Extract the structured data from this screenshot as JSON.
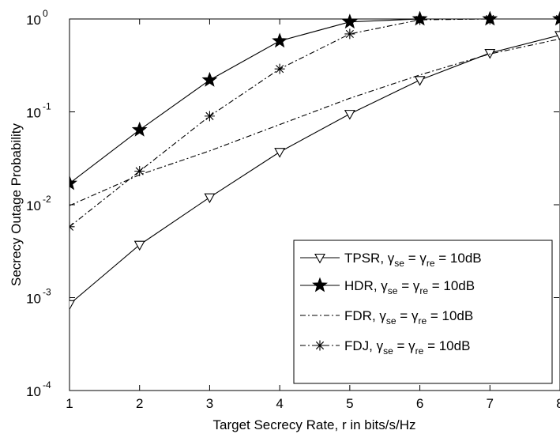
{
  "chart_data": {
    "type": "line",
    "title": "",
    "xlabel": "Target Secrecy Rate, r  in bits/s/Hz",
    "ylabel": "Secrecy Outage Probability",
    "x_ticks": [
      1,
      2,
      3,
      4,
      5,
      6,
      7,
      8
    ],
    "y_scale": "log",
    "y_tick_exponents": [
      -4,
      -3,
      -2,
      -1,
      0
    ],
    "y_tick_base": "10",
    "xlim": [
      1,
      8
    ],
    "ylim": [
      0.0001,
      1
    ],
    "grid": false,
    "legend_position": "bottom-right",
    "series": [
      {
        "name": "TPSR, γse =  γre = 10dB",
        "legend": {
          "prefix": "TPSR, ",
          "gamma": "γ",
          "sub1": "se",
          "mid": " =  ",
          "sub2": "re",
          "suffix": " = 10dB"
        },
        "marker": "triangle-down",
        "linestyle": "solid",
        "x": [
          1,
          2,
          3,
          4,
          5,
          6,
          7,
          8
        ],
        "y": [
          0.00085,
          0.0037,
          0.012,
          0.037,
          0.095,
          0.22,
          0.43,
          0.67
        ]
      },
      {
        "name": "HDR, γse =  γre = 10dB",
        "legend": {
          "prefix": "HDR, ",
          "gamma": "γ",
          "sub1": "se",
          "mid": " =  ",
          "sub2": "re",
          "suffix": " = 10dB"
        },
        "marker": "star-filled",
        "linestyle": "solid",
        "x": [
          1,
          2,
          3,
          4,
          5,
          6,
          7,
          8
        ],
        "y": [
          0.017,
          0.064,
          0.22,
          0.58,
          0.93,
          1.0,
          1.0,
          1.0
        ]
      },
      {
        "name": "FDR, γse = γre = 10dB",
        "legend": {
          "prefix": "FDR, ",
          "gamma": "γ",
          "sub1": "se",
          "mid": " = ",
          "sub2": "re",
          "suffix": " = 10dB"
        },
        "marker": "none",
        "linestyle": "dashdot",
        "x": [
          1,
          2,
          3,
          4,
          5,
          6,
          7,
          8
        ],
        "y": [
          0.0098,
          0.021,
          0.038,
          0.073,
          0.14,
          0.25,
          0.42,
          0.61
        ]
      },
      {
        "name": "FDJ, γse =  γre = 10dB",
        "legend": {
          "prefix": "FDJ, ",
          "gamma": "γ",
          "sub1": "se",
          "mid": " =  ",
          "sub2": "re",
          "suffix": " = 10dB"
        },
        "marker": "asterisk",
        "linestyle": "dashdot",
        "x": [
          1,
          2,
          3,
          4,
          5,
          6,
          7,
          8
        ],
        "y": [
          0.0058,
          0.023,
          0.09,
          0.29,
          0.69,
          0.98,
          1.0,
          1.0
        ]
      }
    ]
  }
}
